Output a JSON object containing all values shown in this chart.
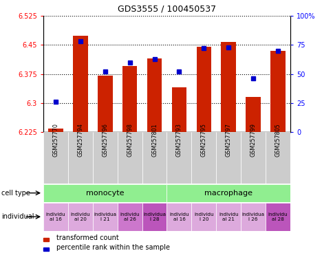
{
  "title": "GDS3555 / 100450537",
  "samples": [
    "GSM257770",
    "GSM257794",
    "GSM257796",
    "GSM257798",
    "GSM257801",
    "GSM257793",
    "GSM257795",
    "GSM257797",
    "GSM257799",
    "GSM257805"
  ],
  "red_values": [
    6.233,
    6.473,
    6.37,
    6.395,
    6.415,
    6.34,
    6.445,
    6.458,
    6.315,
    6.435
  ],
  "blue_percentiles": [
    26,
    78,
    52,
    60,
    63,
    52,
    72,
    73,
    46,
    70
  ],
  "ylim_left": [
    6.225,
    6.525
  ],
  "yticks_left": [
    6.225,
    6.3,
    6.375,
    6.45,
    6.525
  ],
  "ytick_labels_left": [
    "6.225",
    "6.3",
    "6.375",
    "6.45",
    "6.525"
  ],
  "ylim_right": [
    0,
    100
  ],
  "yticks_right": [
    0,
    25,
    50,
    75,
    100
  ],
  "ytick_labels_right": [
    "0",
    "25",
    "50",
    "75",
    "100%"
  ],
  "bar_color": "#cc2200",
  "dot_color": "#0000cc",
  "bar_width": 0.6,
  "baseline": 6.225,
  "individual_colors": [
    "#ddaadd",
    "#ddaadd",
    "#ddaadd",
    "#cc77cc",
    "#bb55bb",
    "#ddaadd",
    "#ddaadd",
    "#ddaadd",
    "#ddaadd",
    "#bb55bb"
  ],
  "individual_labels": [
    "individu\nal 16",
    "individu\nal 20",
    "individua\nl 21",
    "individu\nal 26",
    "individua\nl 28",
    "individu\nal 16",
    "individu\nl 20",
    "individu\nal 21",
    "individua\nl 26",
    "individu\nal 28"
  ],
  "legend_items": [
    {
      "color": "#cc2200",
      "label": "transformed count"
    },
    {
      "color": "#0000cc",
      "label": "percentile rank within the sample"
    }
  ],
  "bg_color": "#ffffff",
  "sample_bg": "#cccccc"
}
